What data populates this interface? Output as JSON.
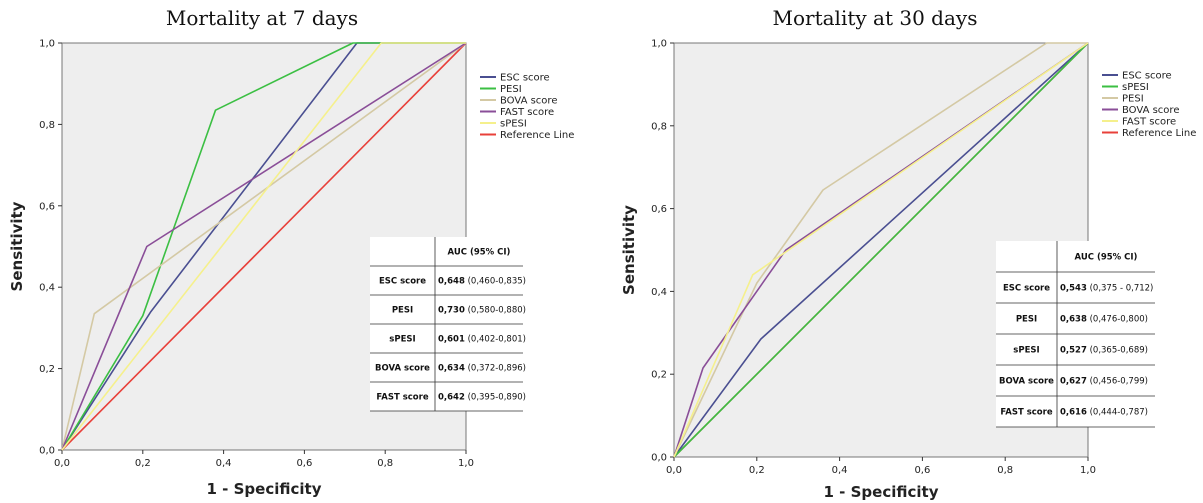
{
  "chart_data": [
    {
      "type": "line",
      "title": "Mortality at 7 days",
      "xlabel": "1 - Specificity",
      "ylabel": "Sensitivity",
      "xlim": [
        0,
        1
      ],
      "ylim": [
        0,
        1
      ],
      "ticks": [
        "0,0",
        "0,2",
        "0,4",
        "0,6",
        "0,8",
        "1,0"
      ],
      "tick_values": [
        0,
        0.2,
        0.4,
        0.6,
        0.8,
        1.0
      ],
      "legend_position": "right",
      "series": [
        {
          "name": "ESC score",
          "color": "#4a4f91",
          "points": [
            [
              0,
              0
            ],
            [
              0.22,
              0.34
            ],
            [
              0.73,
              1.0
            ],
            [
              1,
              1
            ]
          ]
        },
        {
          "name": "PESI",
          "color": "#3bbf43",
          "points": [
            [
              0,
              0
            ],
            [
              0.2,
              0.33
            ],
            [
              0.38,
              0.835
            ],
            [
              0.72,
              1.0
            ],
            [
              1,
              1
            ]
          ]
        },
        {
          "name": "BOVA score",
          "color": "#d4c9a4",
          "points": [
            [
              0,
              0
            ],
            [
              0.08,
              0.335
            ],
            [
              1,
              1
            ]
          ]
        },
        {
          "name": "FAST score",
          "color": "#8a4e98",
          "points": [
            [
              0,
              0
            ],
            [
              0.21,
              0.5
            ],
            [
              1,
              1
            ]
          ]
        },
        {
          "name": "sPESI",
          "color": "#f5f08c",
          "points": [
            [
              0,
              0
            ],
            [
              0.79,
              1.0
            ],
            [
              1,
              1
            ]
          ]
        },
        {
          "name": "Reference Line",
          "color": "#e8403a",
          "points": [
            [
              0,
              0
            ],
            [
              1,
              1
            ]
          ]
        }
      ],
      "table": {
        "header": "AUC (95% CI)",
        "rows": [
          {
            "label": "ESC score",
            "auc": "0,648",
            "ci": "(0,460-0,835)"
          },
          {
            "label": "PESI",
            "auc": "0,730",
            "ci": "(0,580-0,880)"
          },
          {
            "label": "sPESI",
            "auc": "0,601",
            "ci": "(0,402-0,801)"
          },
          {
            "label": "BOVA score",
            "auc": "0,634",
            "ci": "(0,372-0,896)"
          },
          {
            "label": "FAST score",
            "auc": "0,642",
            "ci": "(0,395-0,890)"
          }
        ]
      }
    },
    {
      "type": "line",
      "title": "Mortality at 30 days",
      "xlabel": "1 - Specificity",
      "ylabel": "Sensitivity",
      "xlim": [
        0,
        1
      ],
      "ylim": [
        0,
        1
      ],
      "ticks": [
        "0,0",
        "0,2",
        "0,4",
        "0,6",
        "0,8",
        "1,0"
      ],
      "tick_values": [
        0,
        0.2,
        0.4,
        0.6,
        0.8,
        1.0
      ],
      "legend_position": "right",
      "series": [
        {
          "name": "ESC score",
          "color": "#4a4f91",
          "points": [
            [
              0,
              0
            ],
            [
              0.21,
              0.285
            ],
            [
              1,
              1
            ]
          ]
        },
        {
          "name": "sPESI",
          "color": "#3bbf43",
          "points": [
            [
              0,
              0
            ],
            [
              1,
              1
            ]
          ]
        },
        {
          "name": "PESI",
          "color": "#d4c9a4",
          "points": [
            [
              0,
              0
            ],
            [
              0.2,
              0.42
            ],
            [
              0.36,
              0.645
            ],
            [
              0.9,
              1.0
            ],
            [
              1,
              1
            ]
          ]
        },
        {
          "name": "BOVA score",
          "color": "#8a4e98",
          "points": [
            [
              0,
              0
            ],
            [
              0.07,
              0.215
            ],
            [
              0.27,
              0.5
            ],
            [
              1,
              1
            ]
          ]
        },
        {
          "name": "FAST score",
          "color": "#f5f08c",
          "points": [
            [
              0,
              0
            ],
            [
              0.19,
              0.44
            ],
            [
              1,
              1
            ]
          ]
        },
        {
          "name": "Reference Line",
          "color": "#e8403a",
          "points": [
            [
              0,
              0
            ],
            [
              1,
              1
            ]
          ]
        }
      ],
      "table": {
        "header": "AUC (95% CI)",
        "rows": [
          {
            "label": "ESC score",
            "auc": "0,543",
            "ci": "(0,375 - 0,712)"
          },
          {
            "label": "PESI",
            "auc": "0,638",
            "ci": "(0,476-0,800)"
          },
          {
            "label": "sPESI",
            "auc": "0,527",
            "ci": "(0,365-0,689)"
          },
          {
            "label": "BOVA score",
            "auc": "0,627",
            "ci": "(0,456-0,799)"
          },
          {
            "label": "FAST score",
            "auc": "0,616",
            "ci": "(0,444-0,787)"
          }
        ]
      }
    }
  ]
}
